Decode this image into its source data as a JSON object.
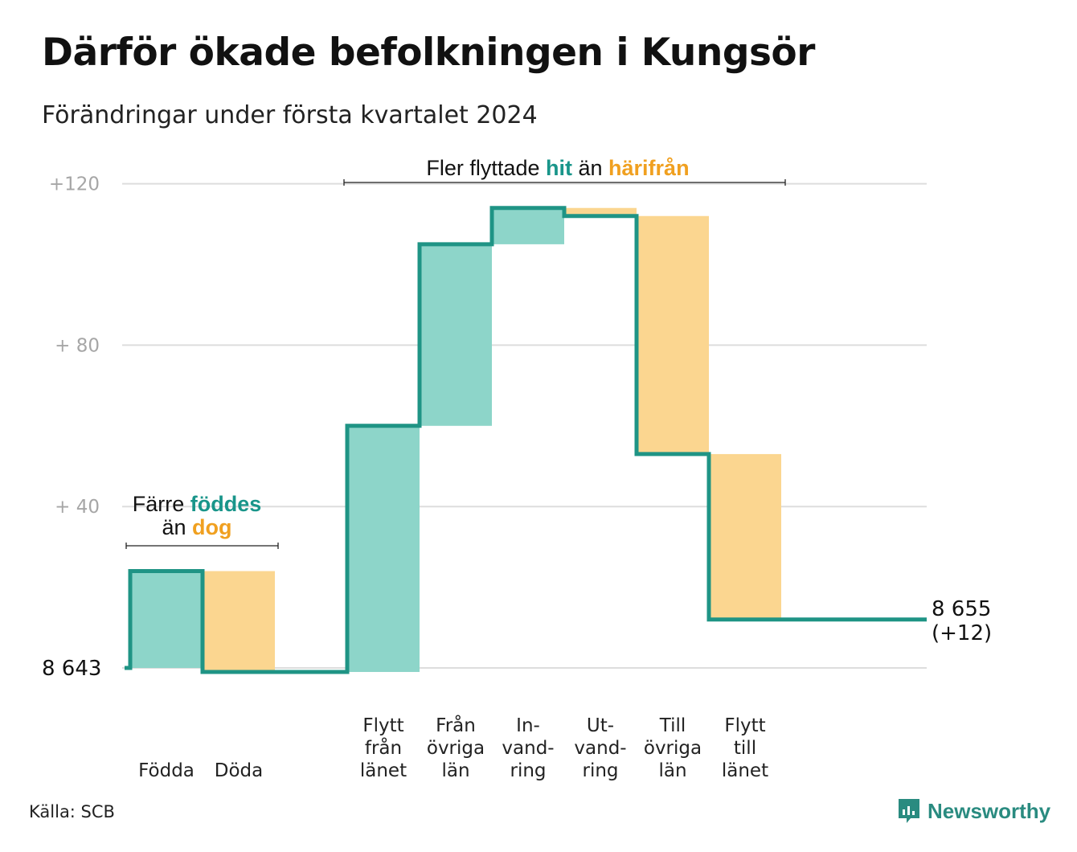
{
  "title": "Därför ökade befolkningen i Kungsör",
  "subtitle": "Förändringar under första kvartalet 2024",
  "source": "Källa: SCB",
  "brand": {
    "name": "Newsworthy",
    "icon": "newsworthy-logo-icon",
    "color": "#2a8b80"
  },
  "colors": {
    "increase": "#8dd5c9",
    "decrease": "#fbd690",
    "line": "#1f9485",
    "accent_teal": "#19958a",
    "accent_orange": "#f0a020"
  },
  "chart_data": {
    "type": "waterfall",
    "start_value": 8643,
    "start_label": "8  643",
    "end_value": 8655,
    "end_label": [
      "8 655",
      "(+12)"
    ],
    "y_axis": {
      "range": [
        0,
        120
      ],
      "ticks": [
        {
          "value": 120,
          "label": "+120"
        },
        {
          "value": 80,
          "label": "+  80"
        },
        {
          "value": 40,
          "label": "+  40"
        }
      ],
      "grid": true
    },
    "steps": [
      {
        "label": [
          "Födda"
        ],
        "change": 24,
        "direction": "increase"
      },
      {
        "label": [
          "Döda"
        ],
        "change": -25,
        "direction": "decrease"
      },
      {
        "label": [],
        "change": 0,
        "direction": "none"
      },
      {
        "label": [
          "Flytt",
          "från",
          "länet"
        ],
        "change": 61,
        "direction": "increase"
      },
      {
        "label": [
          "Från",
          "övriga",
          "län"
        ],
        "change": 45,
        "direction": "increase"
      },
      {
        "label": [
          "In-",
          "vand-",
          "ring"
        ],
        "change": 9,
        "direction": "increase"
      },
      {
        "label": [
          "Ut-",
          "vand-",
          "ring"
        ],
        "change": -2,
        "direction": "decrease"
      },
      {
        "label": [
          "Till",
          "övriga",
          "län"
        ],
        "change": -59,
        "direction": "decrease"
      },
      {
        "label": [
          "Flytt",
          "till",
          "länet"
        ],
        "change": -41,
        "direction": "decrease"
      }
    ],
    "annotations": [
      {
        "id": "migration",
        "parts": [
          {
            "text": "Fler flyttade ",
            "style": "normal"
          },
          {
            "text": "hit",
            "style": "teal"
          },
          {
            "text": " än ",
            "style": "normal"
          },
          {
            "text": "härifrån",
            "style": "orange"
          }
        ]
      },
      {
        "id": "births",
        "lines": [
          [
            {
              "text": "Färre ",
              "style": "normal"
            },
            {
              "text": "föddes",
              "style": "teal"
            }
          ],
          [
            {
              "text": "än ",
              "style": "normal"
            },
            {
              "text": "dog",
              "style": "orange"
            }
          ]
        ]
      }
    ]
  }
}
